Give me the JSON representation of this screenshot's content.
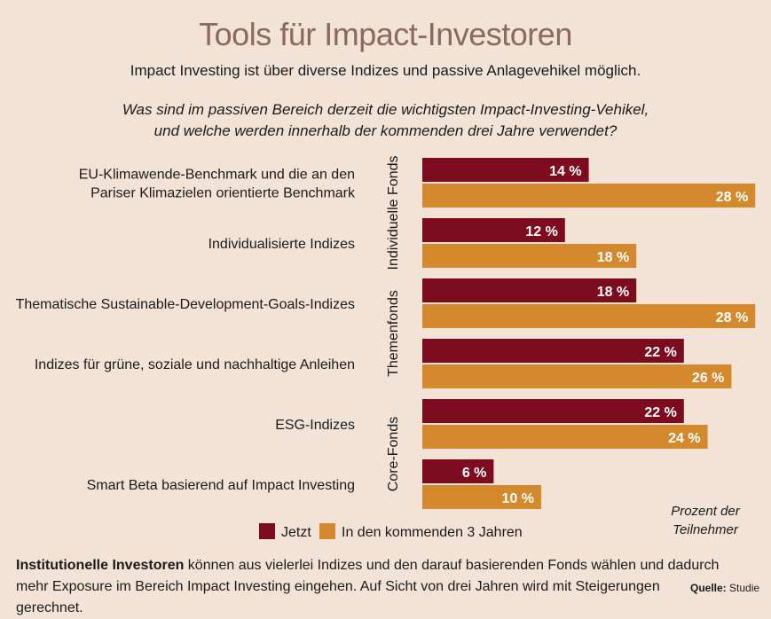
{
  "title": "Tools für Impact-Investoren",
  "subtitle": "Impact Investing ist über diverse Indizes und passive Anlagevehikel möglich.",
  "question_line1": "Was sind im passiven Bereich derzeit die wichtigsten Impact-Investing-Vehikel,",
  "question_line2": "und welche werden innerhalb der kommenden drei Jahre verwendet?",
  "unit_note_line1": "Prozent der",
  "unit_note_line2": "Teilnehmer",
  "legend": {
    "now": "Jetzt",
    "future": "In den kommenden 3 Jahren"
  },
  "footer": {
    "bold": "Institutionelle Investoren",
    "text": " können aus vielerlei Indizes und den darauf basierenden Fonds wählen und dadurch mehr Exposure im Bereich Impact Investing eingehen. Auf Sicht von drei Jahren wird mit Steigerungen gerechnet.",
    "source_label": "Quelle:",
    "source_value": "Studie"
  },
  "colors": {
    "now": "#7d0d1e",
    "future": "#d3892c",
    "background": "#f2e3d6",
    "title": "#8a6a5a"
  },
  "chart_data": {
    "type": "bar",
    "orientation": "horizontal",
    "unit": "%",
    "categories": [
      [
        "EU-Klimawende-Benchmark und die an den",
        "Pariser Klimazielen orientierte Benchmark"
      ],
      [
        "Individualisierte Indizes"
      ],
      [
        "Thematische Sustainable-Development-Goals-Indizes"
      ],
      [
        "Indizes für grüne, soziale und nachhaltige Anleihen"
      ],
      [
        "ESG-Indizes"
      ],
      [
        "Smart Beta basierend auf Impact Investing"
      ]
    ],
    "groups": [
      {
        "label": "Individuelle Fonds",
        "categories": [
          0,
          1
        ]
      },
      {
        "label": "Themenfonds",
        "categories": [
          2,
          3
        ]
      },
      {
        "label": "Core-Fonds",
        "categories": [
          4,
          5
        ]
      }
    ],
    "series": [
      {
        "name": "Jetzt",
        "values": [
          14,
          12,
          18,
          22,
          22,
          6
        ]
      },
      {
        "name": "In den kommenden 3 Jahren",
        "values": [
          28,
          18,
          28,
          26,
          24,
          10
        ]
      }
    ],
    "xlim": [
      0,
      28
    ]
  }
}
